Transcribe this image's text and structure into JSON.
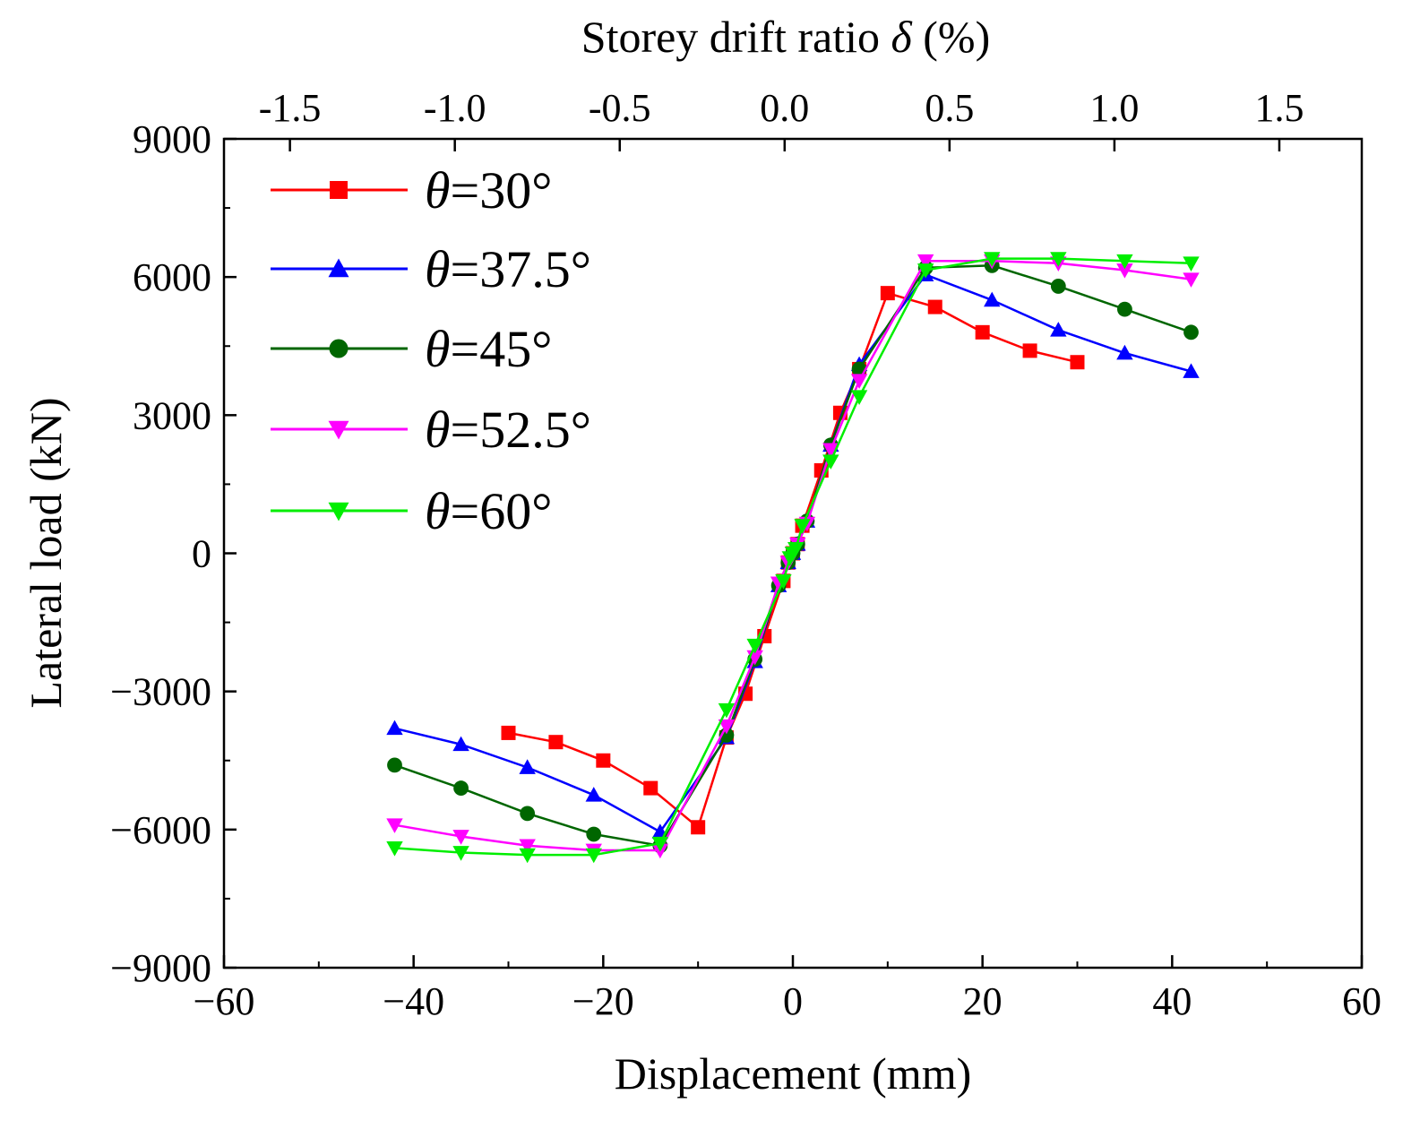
{
  "chart_data": {
    "type": "line",
    "xlabel": "Displacement (mm)",
    "ylabel": "Lateral load (kN)",
    "x2label_prefix": "Storey drift ratio ",
    "x2label_symbol": "δ",
    "x2label_suffix": " (%)",
    "xlim": [
      -60,
      60
    ],
    "ylim": [
      -9000,
      9000
    ],
    "x2lim": [
      -1.7,
      1.75
    ],
    "x_ticks": [
      -60,
      -40,
      -20,
      0,
      20,
      40,
      60
    ],
    "x_tick_labels": [
      "−60",
      "−40",
      "−20",
      "0",
      "20",
      "40",
      "60"
    ],
    "y_ticks": [
      -9000,
      -6000,
      -3000,
      0,
      3000,
      6000,
      9000
    ],
    "y_tick_labels": [
      "−9000",
      "−6000",
      "−3000",
      "0",
      "3000",
      "6000",
      "9000"
    ],
    "x2_ticks": [
      -1.5,
      -1.0,
      -0.5,
      0.0,
      0.5,
      1.0,
      1.5
    ],
    "x2_tick_labels": [
      "-1.5",
      "-1.0",
      "-0.5",
      "0.0",
      "0.5",
      "1.0",
      "1.5"
    ],
    "grid": false,
    "legend_position": "top-left",
    "series": [
      {
        "name_symbol": "θ",
        "name_suffix": "=30°",
        "color": "#ff0000",
        "marker": "square",
        "points": [
          [
            -30,
            -3900
          ],
          [
            -25,
            -4100
          ],
          [
            -20,
            -4500
          ],
          [
            -15,
            -5100
          ],
          [
            -10,
            -5950
          ],
          [
            -7,
            -4000
          ],
          [
            -5,
            -3050
          ],
          [
            -3,
            -1800
          ],
          [
            -1,
            -600
          ],
          [
            -0.5,
            -200
          ],
          [
            0,
            0
          ],
          [
            0.5,
            200
          ],
          [
            1,
            600
          ],
          [
            3,
            1800
          ],
          [
            5,
            3050
          ],
          [
            7,
            4000
          ],
          [
            10,
            5650
          ],
          [
            15,
            5350
          ],
          [
            20,
            4800
          ],
          [
            25,
            4400
          ],
          [
            30,
            4150
          ]
        ]
      },
      {
        "name_symbol": "θ",
        "name_suffix": "=37.5°",
        "color": "#0000ff",
        "marker": "triangle-up",
        "points": [
          [
            -42,
            -3800
          ],
          [
            -35,
            -4150
          ],
          [
            -28,
            -4650
          ],
          [
            -21,
            -5250
          ],
          [
            -14,
            -6050
          ],
          [
            -7,
            -4000
          ],
          [
            -4,
            -2350
          ],
          [
            -1.5,
            -700
          ],
          [
            -0.5,
            -200
          ],
          [
            0,
            0
          ],
          [
            0.5,
            200
          ],
          [
            1.5,
            700
          ],
          [
            4,
            2350
          ],
          [
            7,
            4100
          ],
          [
            14,
            6050
          ],
          [
            21,
            5500
          ],
          [
            28,
            4850
          ],
          [
            35,
            4350
          ],
          [
            42,
            3950
          ]
        ]
      },
      {
        "name_symbol": "θ",
        "name_suffix": "=45°",
        "color": "#006600",
        "marker": "circle",
        "points": [
          [
            -42,
            -4600
          ],
          [
            -35,
            -5100
          ],
          [
            -28,
            -5650
          ],
          [
            -21,
            -6100
          ],
          [
            -14,
            -6350
          ],
          [
            -7,
            -3950
          ],
          [
            -4,
            -2300
          ],
          [
            -1.5,
            -700
          ],
          [
            -0.5,
            -200
          ],
          [
            0,
            0
          ],
          [
            0.5,
            200
          ],
          [
            1.5,
            700
          ],
          [
            4,
            2350
          ],
          [
            7,
            4000
          ],
          [
            14,
            6200
          ],
          [
            21,
            6250
          ],
          [
            28,
            5800
          ],
          [
            35,
            5300
          ],
          [
            42,
            4800
          ]
        ]
      },
      {
        "name_symbol": "θ",
        "name_suffix": "=52.5°",
        "color": "#ff00ff",
        "marker": "triangle-down",
        "points": [
          [
            -42,
            -5900
          ],
          [
            -35,
            -6150
          ],
          [
            -28,
            -6350
          ],
          [
            -21,
            -6450
          ],
          [
            -14,
            -6450
          ],
          [
            -7,
            -3750
          ],
          [
            -4,
            -2250
          ],
          [
            -1.5,
            -650
          ],
          [
            -0.5,
            -200
          ],
          [
            0,
            0
          ],
          [
            0.5,
            200
          ],
          [
            1.5,
            650
          ],
          [
            4,
            2250
          ],
          [
            7,
            3750
          ],
          [
            14,
            6350
          ],
          [
            21,
            6350
          ],
          [
            28,
            6300
          ],
          [
            35,
            6150
          ],
          [
            42,
            5950
          ]
        ]
      },
      {
        "name_symbol": "θ",
        "name_suffix": "=60°",
        "color": "#00ee00",
        "marker": "triangle-down",
        "points": [
          [
            -42,
            -6400
          ],
          [
            -35,
            -6500
          ],
          [
            -28,
            -6550
          ],
          [
            -21,
            -6550
          ],
          [
            -14,
            -6300
          ],
          [
            -7,
            -3400
          ],
          [
            -4,
            -2000
          ],
          [
            -1,
            -600
          ],
          [
            -0.3,
            -100
          ],
          [
            0,
            0
          ],
          [
            0.3,
            100
          ],
          [
            1,
            600
          ],
          [
            4,
            2000
          ],
          [
            7,
            3400
          ],
          [
            14,
            6150
          ],
          [
            21,
            6400
          ],
          [
            28,
            6400
          ],
          [
            35,
            6350
          ],
          [
            42,
            6300
          ]
        ]
      }
    ]
  }
}
